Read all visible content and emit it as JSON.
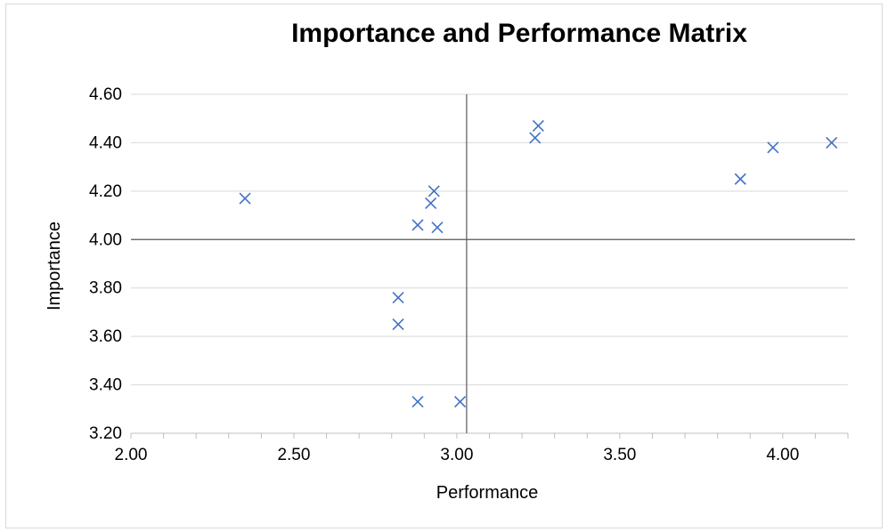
{
  "chart_data": {
    "type": "scatter",
    "title": "Importance and Performance Matrix",
    "xlabel": "Performance",
    "ylabel": "Importance",
    "xlim": [
      2.0,
      4.2
    ],
    "ylim": [
      3.2,
      4.6
    ],
    "x_ticks": [
      "2.00",
      "2.50",
      "3.00",
      "3.50",
      "4.00"
    ],
    "y_ticks": [
      "3.20",
      "3.40",
      "3.60",
      "3.80",
      "4.00",
      "4.20",
      "4.40",
      "4.60"
    ],
    "grid": "horizontal",
    "legend": "none",
    "marker": "x",
    "series_color": "#4472C4",
    "crosshair": {
      "x": 3.03,
      "y": 4.0
    },
    "series": [
      {
        "points": [
          {
            "x": 2.35,
            "y": 4.17
          },
          {
            "x": 2.82,
            "y": 3.76
          },
          {
            "x": 2.82,
            "y": 3.65
          },
          {
            "x": 2.88,
            "y": 4.06
          },
          {
            "x": 2.88,
            "y": 3.33
          },
          {
            "x": 2.92,
            "y": 4.15
          },
          {
            "x": 2.93,
            "y": 4.2
          },
          {
            "x": 2.94,
            "y": 4.05
          },
          {
            "x": 3.01,
            "y": 3.33
          },
          {
            "x": 3.24,
            "y": 4.42
          },
          {
            "x": 3.25,
            "y": 4.47
          },
          {
            "x": 3.87,
            "y": 4.25
          },
          {
            "x": 3.97,
            "y": 4.38
          },
          {
            "x": 4.15,
            "y": 4.4
          }
        ]
      }
    ]
  }
}
